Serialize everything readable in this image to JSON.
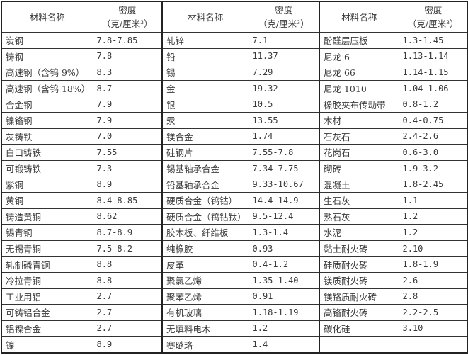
{
  "header": {
    "name": "材料名称",
    "density_line1": "密度",
    "density_line2": "（克/厘米³）"
  },
  "groups": [
    [
      [
        "炭钢",
        "7.8-7.85"
      ],
      [
        "铸钢",
        "7.8"
      ],
      [
        "高速钢（含钨 9%）",
        "8.3"
      ],
      [
        "高速钢（含钨 18%）",
        "8.7"
      ],
      [
        "合金钢",
        "7.9"
      ],
      [
        "镍铬钢",
        "7.9"
      ],
      [
        "灰铸铁",
        "7.0"
      ],
      [
        "白口铸铁",
        "7.55"
      ],
      [
        "可锻铸铁",
        "7.3"
      ],
      [
        "紫铜",
        "8.9"
      ],
      [
        "黄铜",
        "8.4-8.85"
      ],
      [
        "铸造黄铜",
        "8.62"
      ],
      [
        "锡青铜",
        "8.7-8.9"
      ],
      [
        "无锡青铜",
        "7.5-8.2"
      ],
      [
        "轧制磷青铜",
        "8.8"
      ],
      [
        "冷拉青铜",
        "8.8"
      ],
      [
        "工业用铝",
        "2.7"
      ],
      [
        "可铸铝合金",
        "2.7"
      ],
      [
        "铝镍合金",
        "2.7"
      ],
      [
        "镍",
        "8.9"
      ]
    ],
    [
      [
        "轧锌",
        "7.1"
      ],
      [
        "铅",
        "11.37"
      ],
      [
        "锡",
        "7.29"
      ],
      [
        "金",
        "19.32"
      ],
      [
        "银",
        "10.5"
      ],
      [
        "汞",
        "13.55"
      ],
      [
        "镁合金",
        "1.74"
      ],
      [
        "硅钢片",
        "7.55-7.8"
      ],
      [
        "锡基轴承合金",
        "7.34-7.75"
      ],
      [
        "铅基轴承合金",
        "9.33-10.67"
      ],
      [
        "硬质合金（钨钴）",
        "14.4-14.9"
      ],
      [
        "硬质合金（钨钴钛）",
        "9.5-12.4"
      ],
      [
        "胶木板、纤维板",
        "1.3-1.4"
      ],
      [
        "纯橡胶",
        "0.93"
      ],
      [
        "皮革",
        "0.4-1.2"
      ],
      [
        "聚氯乙烯",
        "1.35-1.40"
      ],
      [
        "聚苯乙烯",
        "0.91"
      ],
      [
        "有机玻璃",
        "1.18-1.19"
      ],
      [
        "无填料电木",
        "1.2"
      ],
      [
        "赛璐珞",
        "1.4"
      ]
    ],
    [
      [
        "酚醛层压板",
        "1.3-1.45"
      ],
      [
        "尼龙 6",
        "1.13-1.14"
      ],
      [
        "尼龙 66",
        "1.14-1.15"
      ],
      [
        "尼龙 1010",
        "1.04-1.06"
      ],
      [
        "橡胶夹布传动带",
        "0.8-1.2"
      ],
      [
        "木材",
        "0.4-0.75"
      ],
      [
        "石灰石",
        "2.4-2.6"
      ],
      [
        "花岗石",
        "0.6-3.0"
      ],
      [
        "砌砖",
        "1.9-3.2"
      ],
      [
        "混凝土",
        "1.8-2.45"
      ],
      [
        "生石灰",
        "1.1"
      ],
      [
        "熟石灰",
        "1.2"
      ],
      [
        "水泥",
        "1.2"
      ],
      [
        "黏土耐火砖",
        "2.10"
      ],
      [
        "硅质耐火砖",
        "1.8-1.9"
      ],
      [
        "镁质耐火砖",
        "2.6"
      ],
      [
        "镁铬质耐火砖",
        "2.8"
      ],
      [
        "高铬耐火砖",
        "2.2-2.5"
      ],
      [
        "碳化硅",
        "3.10"
      ],
      [
        "",
        ""
      ]
    ]
  ]
}
